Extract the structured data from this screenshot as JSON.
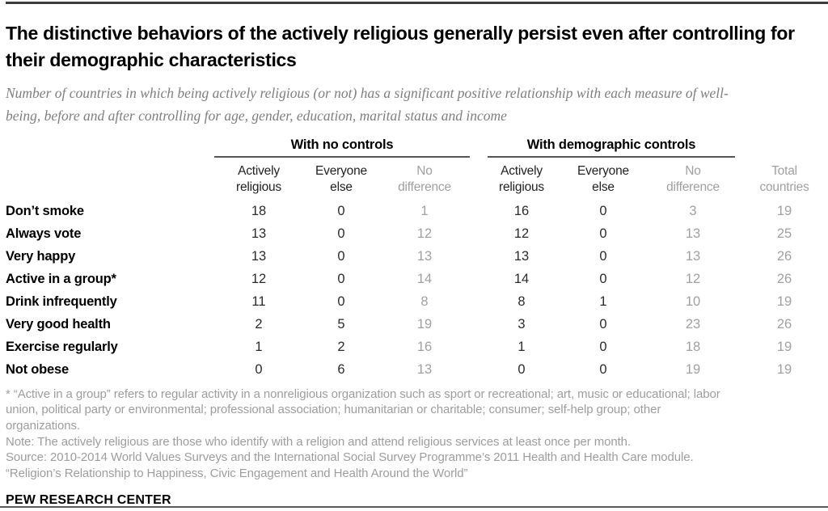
{
  "page": {
    "brand": "PEW RESEARCH CENTER"
  },
  "colors": {
    "text": "#000000",
    "muted_gray": "#a0a0a0",
    "subtitle_gray": "#7f7f7f",
    "footnote_gray": "#9d9d9d",
    "rule_dark": "#3c3c3c",
    "rule_bottom": "#5a5a5a"
  },
  "chart_data": {
    "type": "table",
    "title": "The distinctive behaviors of the actively religious generally persist even after controlling for their demographic characteristics",
    "subtitle": "Number of countries in which being actively religious (or not) has a significant positive relationship with each measure of well-being, before and after controlling for age, gender, education, marital status and income",
    "column_groups": [
      {
        "label": "With no controls",
        "columns": [
          "Actively religious",
          "Everyone else",
          "No difference"
        ]
      },
      {
        "label": "With demographic controls",
        "columns": [
          "Actively religious",
          "Everyone else",
          "No difference"
        ]
      }
    ],
    "columns": [
      "Actively religious",
      "Everyone else",
      "No difference",
      "Actively religious",
      "Everyone else",
      "No difference",
      "Total countries"
    ],
    "rows": [
      {
        "label": "Don’t smoke",
        "values": [
          18,
          0,
          1,
          16,
          0,
          3,
          19
        ]
      },
      {
        "label": "Always vote",
        "values": [
          13,
          0,
          12,
          12,
          0,
          13,
          25
        ]
      },
      {
        "label": "Very happy",
        "values": [
          13,
          0,
          13,
          13,
          0,
          13,
          26
        ]
      },
      {
        "label": "Active in a group*",
        "values": [
          12,
          0,
          14,
          14,
          0,
          12,
          26
        ]
      },
      {
        "label": "Drink infrequently",
        "values": [
          11,
          0,
          8,
          8,
          1,
          10,
          19
        ]
      },
      {
        "label": "Very good health",
        "values": [
          2,
          5,
          19,
          3,
          0,
          23,
          26
        ]
      },
      {
        "label": "Exercise regularly",
        "values": [
          1,
          2,
          16,
          1,
          0,
          18,
          19
        ]
      },
      {
        "label": "Not obese",
        "values": [
          0,
          6,
          13,
          0,
          0,
          19,
          19
        ]
      }
    ]
  },
  "footnotes": [
    {
      "lines": [
        "* “Active in a group” refers to regular activity in a nonreligious organization such as sport or recreational; art, music or educational; labor",
        "union, political party or environmental; professional association; humanitarian or charitable; consumer; self-help group; other",
        "organizations."
      ]
    },
    {
      "lines": [
        "Note: The actively religious are those who identify with a religion and attend religious services at least once per month."
      ]
    },
    {
      "lines": [
        "Source: 2010-2014 World Values Surveys and the International Social Survey Programme’s 2011 Health and Health Care module."
      ]
    },
    {
      "lines": [
        "“Religion’s Relationship to Happiness, Civic Engagement and Health Around the World”"
      ]
    }
  ]
}
